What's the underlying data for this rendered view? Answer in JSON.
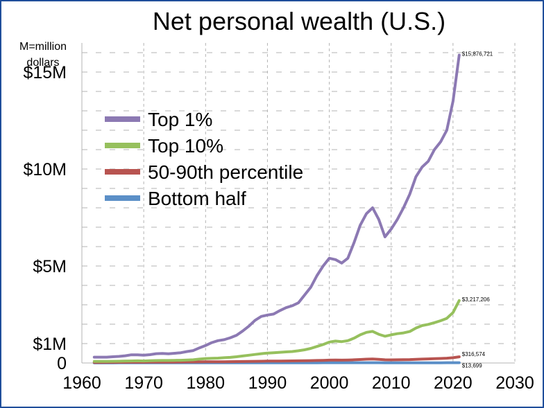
{
  "chart_data": {
    "type": "line",
    "title": "Net personal wealth (U.S.)",
    "unit_note": [
      "M=million",
      "dollars"
    ],
    "xlim": [
      1960,
      2030
    ],
    "ylim": [
      0,
      16500000
    ],
    "x_ticks": [
      {
        "value": 1960,
        "label": "1960"
      },
      {
        "value": 1970,
        "label": "1970"
      },
      {
        "value": 1980,
        "label": "1980"
      },
      {
        "value": 1990,
        "label": "1990"
      },
      {
        "value": 2000,
        "label": "2000"
      },
      {
        "value": 2010,
        "label": "2010"
      },
      {
        "value": 2020,
        "label": "2020"
      },
      {
        "value": 2030,
        "label": "2030"
      }
    ],
    "y_ticks": [
      {
        "value": 0,
        "label": "0"
      },
      {
        "value": 1000000,
        "label": "$1M"
      },
      {
        "value": 5000000,
        "label": "$5M"
      },
      {
        "value": 10000000,
        "label": "$10M"
      },
      {
        "value": 15000000,
        "label": "$15M"
      }
    ],
    "grid": true,
    "legend": "upper-left",
    "x": [
      1962,
      1963,
      1964,
      1965,
      1966,
      1967,
      1968,
      1969,
      1970,
      1971,
      1972,
      1973,
      1974,
      1975,
      1976,
      1977,
      1978,
      1979,
      1980,
      1981,
      1982,
      1983,
      1984,
      1985,
      1986,
      1987,
      1988,
      1989,
      1990,
      1991,
      1992,
      1993,
      1994,
      1995,
      1996,
      1997,
      1998,
      1999,
      2000,
      2001,
      2002,
      2003,
      2004,
      2005,
      2006,
      2007,
      2008,
      2009,
      2010,
      2011,
      2012,
      2013,
      2014,
      2015,
      2016,
      2017,
      2018,
      2019,
      2020,
      2021
    ],
    "series": [
      {
        "name": "Top 1%",
        "color": "#8c79b3",
        "end_label": "$15,876,721",
        "values": [
          300000,
          300000,
          300000,
          320000,
          340000,
          370000,
          420000,
          420000,
          400000,
          430000,
          480000,
          490000,
          470000,
          500000,
          530000,
          590000,
          640000,
          780000,
          900000,
          1050000,
          1150000,
          1200000,
          1300000,
          1430000,
          1650000,
          1900000,
          2200000,
          2400000,
          2470000,
          2520000,
          2700000,
          2850000,
          2950000,
          3100000,
          3500000,
          3900000,
          4500000,
          5000000,
          5400000,
          5330000,
          5150000,
          5400000,
          6200000,
          7100000,
          7700000,
          8000000,
          7400000,
          6500000,
          6900000,
          7400000,
          8000000,
          8700000,
          9600000,
          10100000,
          10400000,
          11000000,
          11400000,
          12000000,
          13500000,
          15876721
        ]
      },
      {
        "name": "Top 10%",
        "color": "#96c05d",
        "end_label": "$3,217,206",
        "values": [
          80000,
          80000,
          80000,
          85000,
          90000,
          95000,
          105000,
          110000,
          105000,
          115000,
          125000,
          130000,
          130000,
          135000,
          140000,
          150000,
          165000,
          200000,
          230000,
          240000,
          250000,
          270000,
          290000,
          320000,
          360000,
          400000,
          440000,
          480000,
          510000,
          530000,
          550000,
          570000,
          590000,
          630000,
          680000,
          750000,
          850000,
          950000,
          1080000,
          1130000,
          1100000,
          1150000,
          1280000,
          1450000,
          1580000,
          1630000,
          1480000,
          1380000,
          1450000,
          1510000,
          1550000,
          1620000,
          1800000,
          1930000,
          1990000,
          2080000,
          2180000,
          2300000,
          2600000,
          3217206
        ]
      },
      {
        "name": "50-90th percentile",
        "color": "#b85450",
        "end_label": "$316,574",
        "values": [
          30000,
          30000,
          31000,
          33000,
          35000,
          36000,
          38000,
          40000,
          40000,
          42000,
          44000,
          46000,
          47000,
          48000,
          50000,
          52000,
          55000,
          58000,
          60000,
          62000,
          64000,
          66000,
          68000,
          72000,
          76000,
          80000,
          85000,
          90000,
          95000,
          98000,
          100000,
          103000,
          106000,
          110000,
          115000,
          120000,
          128000,
          135000,
          145000,
          150000,
          148000,
          152000,
          165000,
          180000,
          195000,
          205000,
          185000,
          165000,
          162000,
          165000,
          170000,
          175000,
          185000,
          200000,
          210000,
          220000,
          232000,
          245000,
          270000,
          316574
        ]
      },
      {
        "name": "Bottom half",
        "color": "#5b8fc7",
        "end_label": "$13,699",
        "values": [
          5000,
          5000,
          5000,
          5200,
          5400,
          5600,
          5800,
          6000,
          6000,
          6200,
          6400,
          6600,
          6600,
          6800,
          7000,
          7200,
          7500,
          7800,
          8000,
          8200,
          8400,
          8600,
          8800,
          9000,
          9300,
          9600,
          10000,
          10300,
          10500,
          10700,
          10900,
          11100,
          11300,
          11500,
          11700,
          12000,
          12300,
          12600,
          13000,
          13200,
          13000,
          13200,
          13600,
          14000,
          14300,
          14500,
          13500,
          11500,
          10500,
          10200,
          10100,
          10300,
          10700,
          11100,
          11400,
          11800,
          12200,
          12600,
          13100,
          13699
        ]
      }
    ]
  }
}
